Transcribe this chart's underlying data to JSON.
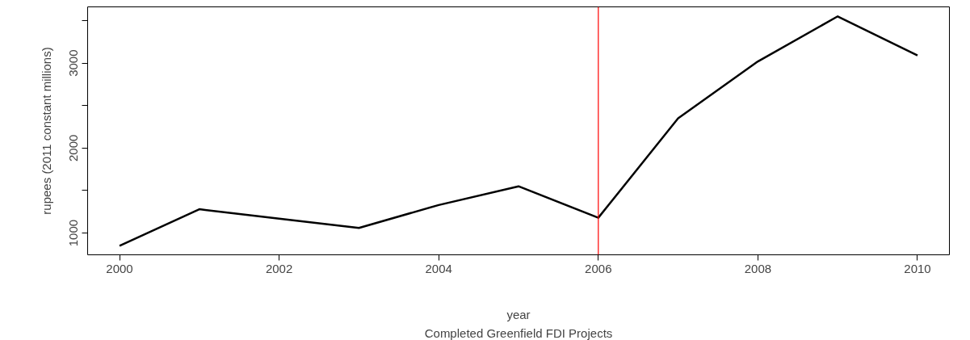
{
  "chart_data": {
    "type": "line",
    "xlabel": "year",
    "ylabel": "rupees (2011 constant millions)",
    "annotations": [
      "Completed Greenfield FDI Projects"
    ],
    "x": [
      2000,
      2001,
      2002,
      2003,
      2004,
      2005,
      2006,
      2007,
      2008,
      2009,
      2010
    ],
    "series": [
      {
        "color": "#000000",
        "values": [
          850,
          1280,
          1170,
          1060,
          1330,
          1550,
          1180,
          2350,
          3020,
          3550,
          3090
        ]
      }
    ],
    "xlim": [
      1999.6,
      2010.4
    ],
    "ylim": [
      744,
      3662
    ],
    "xticks": [
      2000,
      2002,
      2004,
      2006,
      2008,
      2010
    ],
    "yticks": [
      1000,
      {
        "value": 1500,
        "label": null
      },
      2000,
      {
        "value": 2500,
        "label": null
      },
      3000,
      {
        "value": 3500,
        "label": null
      }
    ],
    "ref_lines": [
      {
        "axis": "x",
        "value": 2006,
        "color": "#ff0000"
      }
    ],
    "grid": false,
    "marker": "none",
    "line_style": "solid"
  }
}
